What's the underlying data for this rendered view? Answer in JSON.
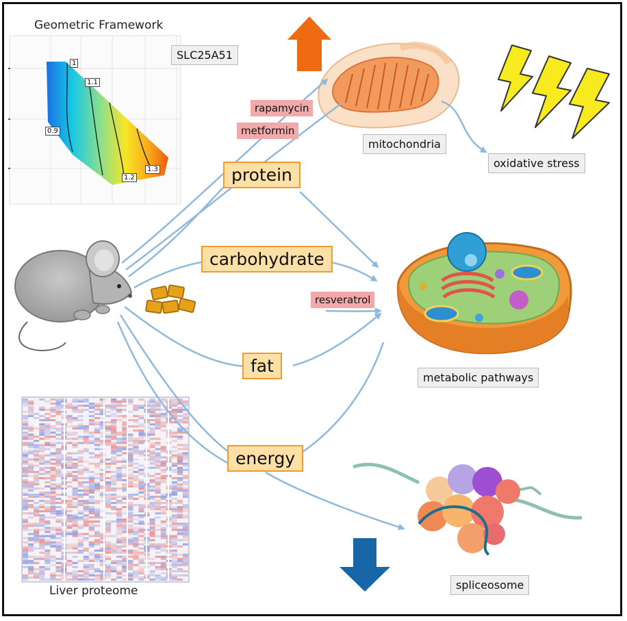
{
  "geometric": {
    "title": "Geometric Framework",
    "gene_label": "SLC25A51",
    "contours": [
      "1",
      "1.1",
      "0.9",
      "1.2",
      "1.3"
    ]
  },
  "nutrients": {
    "protein": "protein",
    "carbohydrate": "carbohydrate",
    "fat": "fat",
    "energy": "energy"
  },
  "drugs": {
    "rapamycin": "rapamycin",
    "metformin": "metformin",
    "resveratrol": "resveratrol"
  },
  "outcomes": {
    "mitochondria": "mitochondria",
    "oxidative_stress": "oxidative stress",
    "metabolic_pathways": "metabolic pathways",
    "spliceosome": "spliceosome"
  },
  "proteome": {
    "label": "Liver proteome"
  },
  "colors": {
    "arrow_blue": "#8fb8db",
    "up_arrow": "#ef6b12",
    "down_arrow": "#1767a8",
    "box_fill": "#fde0a6",
    "box_border": "#ef9b33",
    "drug_fill": "#f1a9a9"
  }
}
